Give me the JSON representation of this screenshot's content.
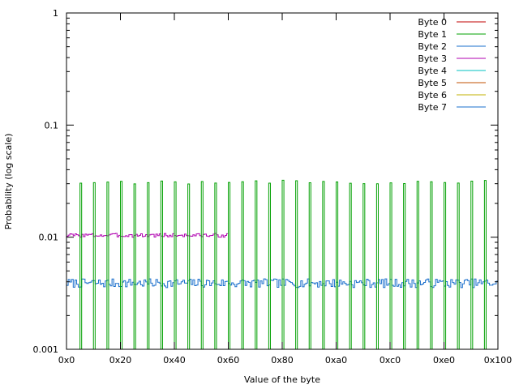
{
  "chart_data": {
    "type": "line",
    "xlabel": "Value of the byte",
    "ylabel": "Probability (log scale)",
    "x_axis": {
      "min": 0,
      "max": 256,
      "tick_values": [
        0,
        32,
        64,
        96,
        128,
        160,
        192,
        224,
        256
      ],
      "tick_labels": [
        "0x0",
        "0x20",
        "0x40",
        "0x60",
        "0x80",
        "0xa0",
        "0xc0",
        "0xe0",
        "0x100"
      ]
    },
    "y_axis": {
      "scale": "log",
      "min": 0.001,
      "max": 1,
      "tick_values": [
        0.001,
        0.01,
        0.1,
        1
      ],
      "tick_labels": [
        "0.001",
        "0.01",
        "0.1",
        "1"
      ]
    },
    "grid": false,
    "legend_position": "top-right",
    "series": [
      {
        "name": "Byte 0",
        "color": "#c00000",
        "visible_in_plot": false
      },
      {
        "name": "Byte 1",
        "color": "#00a000",
        "description_values": {
          "spike_value": 0.031,
          "spike_positions_start": 8,
          "spike_step": 8,
          "other_values": 0
        }
      },
      {
        "name": "Byte 2",
        "color": "#1a6fcc",
        "visible_in_plot": false
      },
      {
        "name": "Byte 3",
        "color": "#b000b0",
        "description_values": {
          "typical_value": 0.0104,
          "nonzero_range": [
            0,
            95
          ],
          "other_values": 0
        }
      },
      {
        "name": "Byte 4",
        "color": "#00c0c0",
        "visible_in_plot": false
      },
      {
        "name": "Byte 5",
        "color": "#c05000",
        "visible_in_plot": false
      },
      {
        "name": "Byte 6",
        "color": "#c0b000",
        "visible_in_plot": false
      },
      {
        "name": "Byte 7",
        "color": "#1a6fcc",
        "description_values": {
          "typical_value": 0.0039,
          "range": [
            0,
            255
          ]
        }
      }
    ]
  }
}
